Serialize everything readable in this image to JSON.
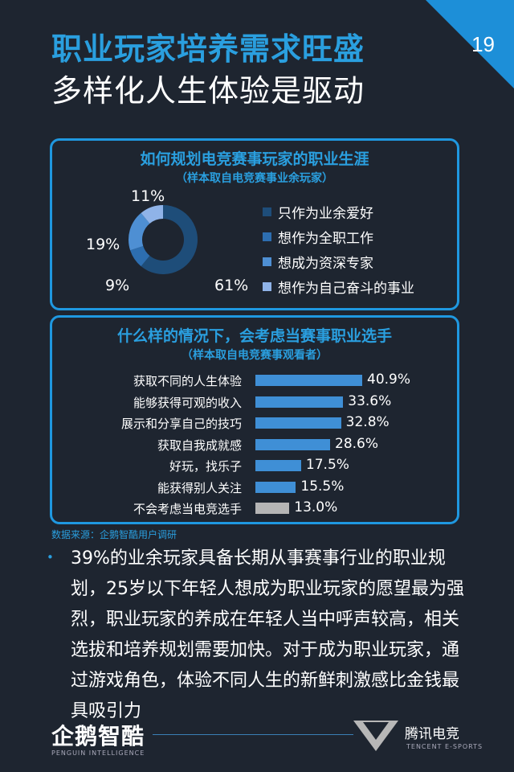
{
  "header": {
    "title_line1": "职业玩家培养需求旺盛",
    "title_line2": "多样化人生体验是驱动",
    "page_number": "19"
  },
  "colors": {
    "accent": "#2a9fdf",
    "corner": "#1d8fd8",
    "background": "#1e2530"
  },
  "chart_data": [
    {
      "type": "pie",
      "title": "如何规划电竞赛事玩家的职业生涯",
      "subtitle": "（样本取自电竞赛事业余玩家）",
      "categories": [
        "只作为业余爱好",
        "想作为全职工作",
        "想成为资深专家",
        "想作为自己奋斗的事业"
      ],
      "values": [
        61,
        9,
        19,
        11
      ],
      "labels": [
        "61%",
        "9%",
        "19%",
        "11%"
      ],
      "colors": [
        "#1e4d79",
        "#2d6eb0",
        "#4e8fd3",
        "#8fb3e8"
      ],
      "legend_position": "right"
    },
    {
      "type": "bar",
      "orientation": "horizontal",
      "title": "什么样的情况下，会考虑当赛事职业选手",
      "subtitle": "（样本取自电竞赛事观看者）",
      "categories": [
        "获取不同的人生体验",
        "能够获得可观的收入",
        "展示和分享自己的技巧",
        "获取自我成就感",
        "好玩，找乐子",
        "能获得别人关注",
        "不会考虑当电竞选手"
      ],
      "values": [
        40.9,
        33.6,
        32.8,
        28.6,
        17.5,
        15.5,
        13.0
      ],
      "labels": [
        "40.9%",
        "33.6%",
        "32.8%",
        "28.6%",
        "17.5%",
        "15.5%",
        "13.0%"
      ],
      "colors": [
        "#3f8fd6",
        "#3f8fd6",
        "#3f8fd6",
        "#3f8fd6",
        "#3f8fd6",
        "#3f8fd6",
        "#b5b5b5"
      ],
      "xlim": [
        0,
        45
      ]
    }
  ],
  "source": "数据来源：企鹅智酷用户调研",
  "body": {
    "bullet": "•",
    "text": "39%的业余玩家具备长期从事赛事行业的职业规划，25岁以下年轻人想成为职业玩家的愿望最为强烈，职业玩家的养成在年轻人当中呼声较高，相关选拔和培养规划需要加快。对于成为职业玩家，通过游戏角色，体验不同人生的新鲜刺激感比金钱最具吸引力"
  },
  "footer": {
    "left_logo": "企鹅智酷",
    "left_logo_sub": "PENGUIN INTELLIGENCE",
    "right_logo": "腾讯电竞",
    "right_logo_sub": "TENCENT E-SPORTS"
  }
}
